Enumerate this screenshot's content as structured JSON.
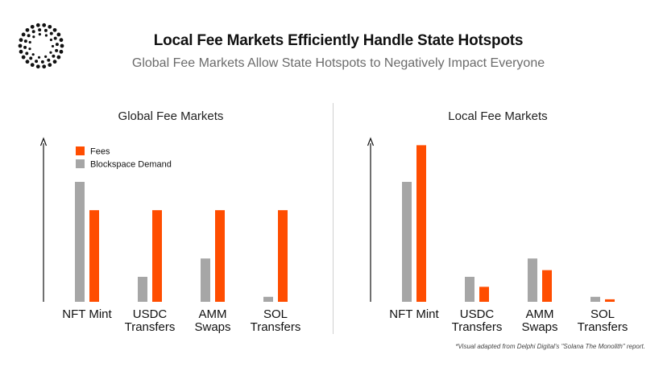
{
  "header": {
    "title": "Local Fee Markets Efficiently Handle State Hotspots",
    "subtitle": "Global Fee Markets Allow State Hotspots to Negatively Impact Everyone"
  },
  "colors": {
    "fees": "#ff4d00",
    "demand": "#a6a6a6",
    "axis": "#111111"
  },
  "chart_data": [
    {
      "type": "bar",
      "title": "Global Fee Markets",
      "categories": [
        "NFT Mint",
        "USDC Transfers",
        "AMM Swaps",
        "SOL Transfers"
      ],
      "category_lines": [
        [
          "NFT Mint"
        ],
        [
          "USDC",
          "Transfers"
        ],
        [
          "AMM",
          "Swaps"
        ],
        [
          "SOL",
          "Transfers"
        ]
      ],
      "series": [
        {
          "name": "Blockspace Demand",
          "values": [
            72,
            15,
            26,
            3
          ]
        },
        {
          "name": "Fees",
          "values": [
            55,
            55,
            55,
            55
          ]
        }
      ],
      "ylim": [
        0,
        100
      ],
      "legend": {
        "position": "top-left",
        "entries": [
          "Fees",
          "Blockspace Demand"
        ]
      }
    },
    {
      "type": "bar",
      "title": "Local Fee Markets",
      "categories": [
        "NFT Mint",
        "USDC Transfers",
        "AMM Swaps",
        "SOL Transfers"
      ],
      "category_lines": [
        [
          "NFT Mint"
        ],
        [
          "USDC",
          "Transfers"
        ],
        [
          "AMM",
          "Swaps"
        ],
        [
          "SOL",
          "Transfers"
        ]
      ],
      "series": [
        {
          "name": "Blockspace Demand",
          "values": [
            72,
            15,
            26,
            3
          ]
        },
        {
          "name": "Fees",
          "values": [
            94,
            9,
            19,
            1.5
          ]
        }
      ],
      "ylim": [
        0,
        100
      ]
    }
  ],
  "footnote": "*Visual adapted from Delphi Digital's \"Solana The Monolith\" report."
}
